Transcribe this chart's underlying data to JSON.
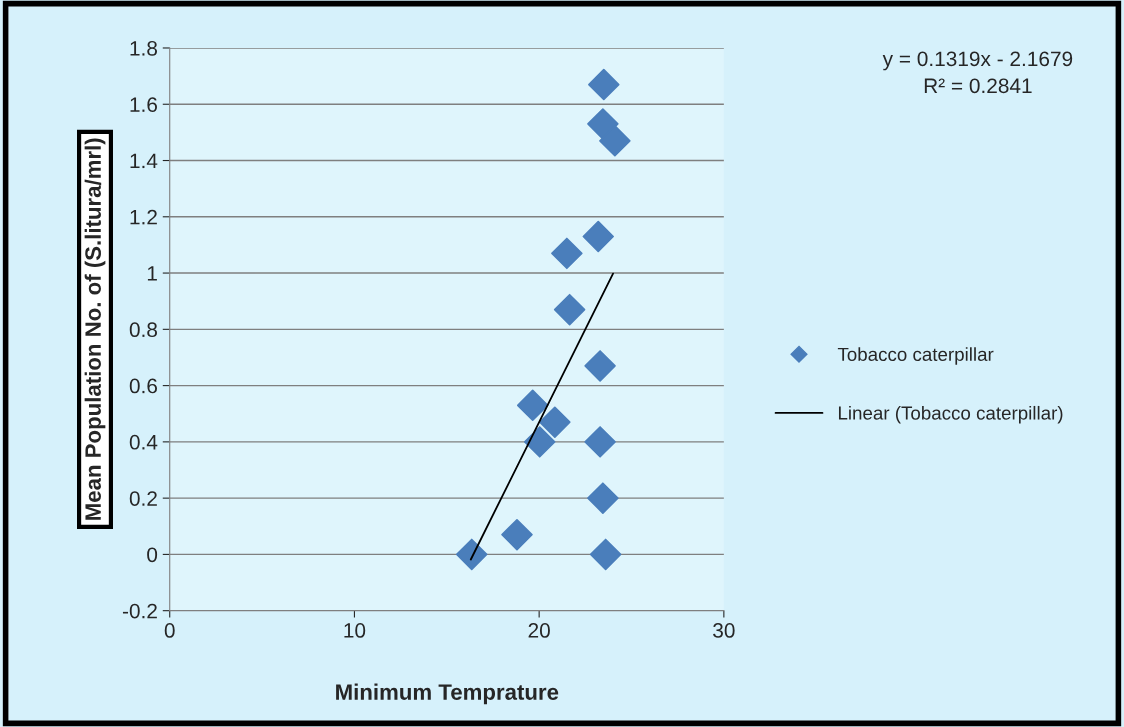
{
  "chart_data": {
    "type": "scatter",
    "xlabel": "Minimum Temprature",
    "ylabel": "Mean Population No. of (S.litura/mrl)",
    "annotations": [
      "y = 0.1319x - 2.1679",
      "R² = 0.2841"
    ],
    "series": [
      {
        "name": "Tobacco caterpillar",
        "color": "#4a7ebb",
        "marker": "diamond",
        "x": [
          16.35,
          18.8,
          19.65,
          20.85,
          20.03,
          21.5,
          21.65,
          23.2,
          23.5,
          23.45,
          24.1,
          23.3,
          23.3,
          23.45,
          23.6
        ],
        "values": [
          0,
          0.07,
          0.53,
          0.47,
          0.4,
          1.07,
          0.87,
          1.13,
          1.67,
          1.53,
          1.47,
          0.67,
          0.4,
          0.2,
          0
        ]
      },
      {
        "name": "Linear (Tobacco caterpillar)",
        "type": "line",
        "color": "#000000",
        "marker": "none",
        "line_style": "solid",
        "x": [
          16.3,
          24.0
        ],
        "values": [
          -0.018,
          0.998
        ]
      }
    ],
    "xlim": [
      0,
      30
    ],
    "xticks": [
      0,
      10,
      20,
      30
    ],
    "ylim": [
      -0.2,
      1.8
    ],
    "yticks": [
      -0.2,
      0,
      0.2,
      0.4,
      0.6,
      0.8,
      1,
      1.2,
      1.4,
      1.6,
      1.8
    ],
    "grid": "y",
    "legend": "right"
  }
}
